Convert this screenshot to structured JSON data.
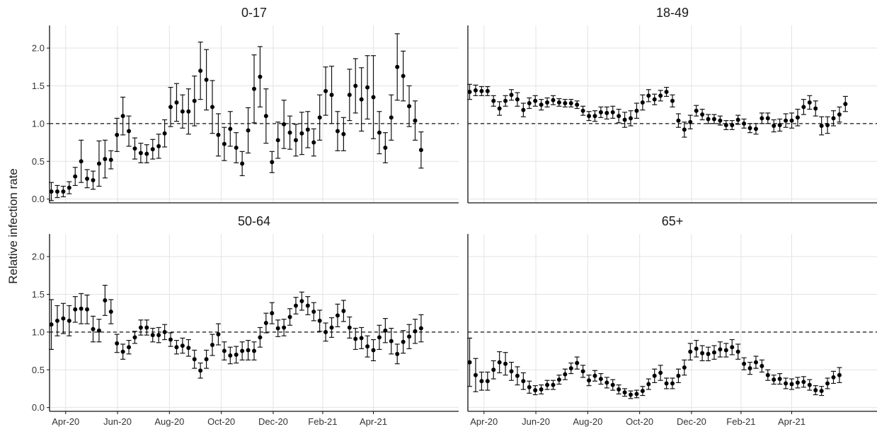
{
  "chart_data": {
    "type": "scatter",
    "ylabel": "Relative infection rate",
    "x_ticks": [
      "Apr-20",
      "Jun-20",
      "Aug-20",
      "Oct-20",
      "Dec-20",
      "Feb-21",
      "Apr-21"
    ],
    "y_ticks": [
      "0.0",
      "0.5",
      "1.0",
      "1.5",
      "2.0"
    ],
    "ylim": [
      -0.05,
      2.3
    ],
    "xlim": [
      -0.3,
      68.3
    ],
    "reference_line": 1.0,
    "grid": true,
    "panels": [
      {
        "title": "0-17",
        "y": [
          0.1,
          0.1,
          0.1,
          0.15,
          0.3,
          0.5,
          0.27,
          0.25,
          0.47,
          0.53,
          0.52,
          0.85,
          1.1,
          0.9,
          0.67,
          0.61,
          0.6,
          0.66,
          0.7,
          0.87,
          1.22,
          1.28,
          1.16,
          1.16,
          1.3,
          1.7,
          1.58,
          1.22,
          0.85,
          0.73,
          0.93,
          0.68,
          0.47,
          0.91,
          1.46,
          1.62,
          1.1,
          0.49,
          0.78,
          0.99,
          0.88,
          0.78,
          0.87,
          0.92,
          0.75,
          1.08,
          1.43,
          1.38,
          0.9,
          0.86,
          1.38,
          1.5,
          1.32,
          1.48,
          1.35,
          0.88,
          0.68,
          1.08,
          1.75,
          1.63,
          1.23,
          1.04,
          0.65
        ],
        "err": [
          0.12,
          0.08,
          0.07,
          0.08,
          0.12,
          0.28,
          0.12,
          0.12,
          0.3,
          0.25,
          0.12,
          0.22,
          0.25,
          0.2,
          0.14,
          0.13,
          0.12,
          0.13,
          0.16,
          0.18,
          0.26,
          0.25,
          0.22,
          0.3,
          0.33,
          0.38,
          0.4,
          0.35,
          0.28,
          0.22,
          0.23,
          0.2,
          0.16,
          0.3,
          0.45,
          0.4,
          0.36,
          0.14,
          0.24,
          0.32,
          0.22,
          0.21,
          0.28,
          0.24,
          0.18,
          0.3,
          0.32,
          0.38,
          0.26,
          0.22,
          0.34,
          0.36,
          0.42,
          0.42,
          0.55,
          0.28,
          0.2,
          0.3,
          0.44,
          0.33,
          0.27,
          0.26,
          0.24
        ]
      },
      {
        "title": "18-49",
        "y": [
          1.42,
          1.44,
          1.43,
          1.43,
          1.3,
          1.2,
          1.3,
          1.38,
          1.32,
          1.18,
          1.27,
          1.3,
          1.25,
          1.28,
          1.31,
          1.28,
          1.27,
          1.27,
          1.25,
          1.17,
          1.1,
          1.1,
          1.15,
          1.14,
          1.15,
          1.1,
          1.05,
          1.07,
          1.17,
          1.28,
          1.37,
          1.32,
          1.37,
          1.42,
          1.3,
          1.04,
          0.92,
          1.02,
          1.17,
          1.12,
          1.06,
          1.06,
          1.04,
          0.98,
          0.98,
          1.05,
          1.0,
          0.94,
          0.93,
          1.07,
          1.07,
          0.97,
          0.98,
          1.04,
          1.04,
          1.08,
          1.22,
          1.28,
          1.2,
          0.97,
          0.98,
          1.07,
          1.12,
          1.26
        ],
        "err": [
          0.1,
          0.07,
          0.06,
          0.06,
          0.07,
          0.09,
          0.07,
          0.07,
          0.09,
          0.09,
          0.07,
          0.07,
          0.07,
          0.06,
          0.06,
          0.05,
          0.05,
          0.05,
          0.05,
          0.06,
          0.06,
          0.07,
          0.07,
          0.08,
          0.08,
          0.09,
          0.1,
          0.1,
          0.1,
          0.1,
          0.08,
          0.07,
          0.07,
          0.06,
          0.08,
          0.09,
          0.1,
          0.09,
          0.07,
          0.07,
          0.06,
          0.06,
          0.06,
          0.06,
          0.06,
          0.06,
          0.06,
          0.06,
          0.07,
          0.07,
          0.07,
          0.08,
          0.08,
          0.09,
          0.1,
          0.11,
          0.1,
          0.09,
          0.1,
          0.12,
          0.11,
          0.1,
          0.1,
          0.1
        ]
      },
      {
        "title": "50-64",
        "y": [
          1.1,
          1.15,
          1.18,
          1.15,
          1.3,
          1.31,
          1.3,
          1.04,
          1.02,
          1.42,
          1.27,
          0.85,
          0.74,
          0.8,
          0.93,
          1.06,
          1.06,
          0.96,
          0.96,
          1.0,
          0.9,
          0.8,
          0.82,
          0.79,
          0.64,
          0.49,
          0.64,
          0.83,
          0.97,
          0.75,
          0.69,
          0.7,
          0.75,
          0.76,
          0.75,
          0.93,
          1.12,
          1.25,
          1.05,
          1.06,
          1.2,
          1.35,
          1.41,
          1.35,
          1.27,
          1.15,
          1.0,
          1.06,
          1.22,
          1.28,
          1.06,
          0.91,
          0.92,
          0.81,
          0.76,
          0.93,
          1.02,
          0.88,
          0.71,
          0.87,
          0.94,
          1.01,
          1.05
        ],
        "err": [
          0.33,
          0.2,
          0.2,
          0.2,
          0.17,
          0.2,
          0.19,
          0.17,
          0.15,
          0.2,
          0.16,
          0.12,
          0.1,
          0.09,
          0.08,
          0.1,
          0.1,
          0.09,
          0.1,
          0.1,
          0.09,
          0.09,
          0.1,
          0.11,
          0.12,
          0.1,
          0.12,
          0.14,
          0.14,
          0.12,
          0.11,
          0.11,
          0.12,
          0.13,
          0.12,
          0.13,
          0.13,
          0.14,
          0.11,
          0.11,
          0.11,
          0.11,
          0.12,
          0.12,
          0.12,
          0.14,
          0.12,
          0.13,
          0.15,
          0.14,
          0.14,
          0.14,
          0.14,
          0.14,
          0.14,
          0.16,
          0.16,
          0.17,
          0.13,
          0.15,
          0.16,
          0.16,
          0.18
        ]
      },
      {
        "title": "65+",
        "y": [
          0.6,
          0.43,
          0.35,
          0.35,
          0.5,
          0.6,
          0.58,
          0.48,
          0.42,
          0.35,
          0.27,
          0.23,
          0.24,
          0.3,
          0.3,
          0.37,
          0.44,
          0.52,
          0.59,
          0.48,
          0.36,
          0.42,
          0.38,
          0.33,
          0.3,
          0.24,
          0.2,
          0.17,
          0.18,
          0.22,
          0.31,
          0.42,
          0.46,
          0.32,
          0.32,
          0.42,
          0.53,
          0.74,
          0.78,
          0.72,
          0.71,
          0.73,
          0.77,
          0.76,
          0.8,
          0.74,
          0.58,
          0.52,
          0.6,
          0.55,
          0.43,
          0.37,
          0.38,
          0.32,
          0.31,
          0.33,
          0.34,
          0.3,
          0.23,
          0.22,
          0.32,
          0.4,
          0.43
        ],
        "err": [
          0.32,
          0.22,
          0.12,
          0.12,
          0.12,
          0.14,
          0.15,
          0.12,
          0.12,
          0.11,
          0.08,
          0.06,
          0.06,
          0.06,
          0.06,
          0.06,
          0.07,
          0.07,
          0.08,
          0.08,
          0.07,
          0.07,
          0.07,
          0.07,
          0.07,
          0.06,
          0.05,
          0.05,
          0.05,
          0.06,
          0.07,
          0.09,
          0.1,
          0.07,
          0.07,
          0.09,
          0.1,
          0.11,
          0.11,
          0.1,
          0.09,
          0.09,
          0.1,
          0.09,
          0.1,
          0.1,
          0.08,
          0.08,
          0.08,
          0.08,
          0.07,
          0.06,
          0.07,
          0.07,
          0.07,
          0.07,
          0.07,
          0.07,
          0.06,
          0.06,
          0.07,
          0.08,
          0.1
        ]
      }
    ]
  }
}
